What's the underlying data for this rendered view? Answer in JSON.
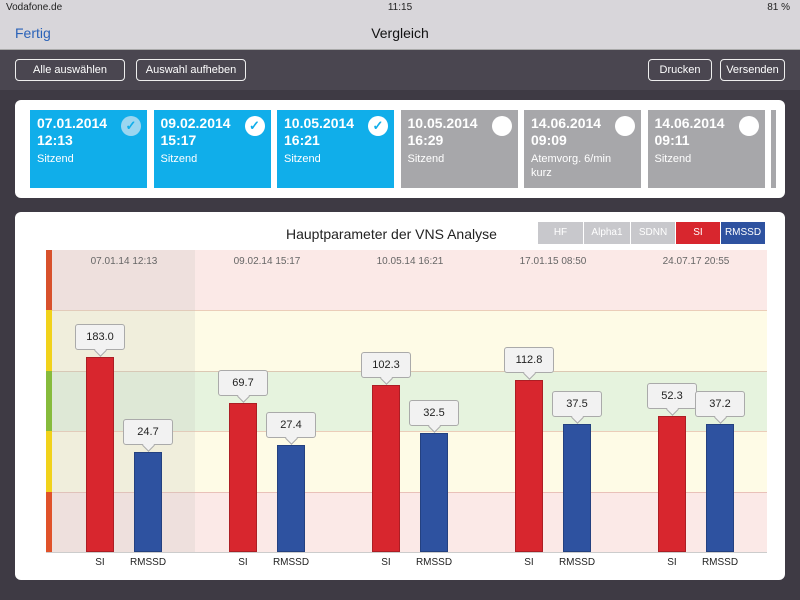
{
  "status": {
    "carrier": "Vodafone.de",
    "time": "11:15",
    "battery": "81 %"
  },
  "nav": {
    "back": "Fertig",
    "title": "Vergleich"
  },
  "toolbar": {
    "select_all": "Alle auswählen",
    "deselect": "Auswahl aufheben",
    "print": "Drucken",
    "send": "Versenden"
  },
  "cards": [
    {
      "date": "07.01.2014",
      "time": "12:13",
      "type": "Sitzend",
      "selected": true
    },
    {
      "date": "09.02.2014",
      "time": "15:17",
      "type": "Sitzend",
      "selected": true
    },
    {
      "date": "10.05.2014",
      "time": "16:21",
      "type": "Sitzend",
      "selected": true
    },
    {
      "date": "10.05.2014",
      "time": "16:29",
      "type": "Sitzend",
      "selected": false
    },
    {
      "date": "14.06.2014",
      "time": "09:09",
      "type": "Atemvorg. 6/min kurz",
      "selected": false
    },
    {
      "date": "14.06.2014",
      "time": "09:11",
      "type": "Sitzend",
      "selected": false
    }
  ],
  "colors": {
    "selected": "#10aeea",
    "unselected": "#a7a7aa",
    "si": "#d8262e",
    "rmssd": "#2e52a0"
  },
  "chart_data": {
    "type": "bar",
    "title": "Hauptparameter der VNS Analyse",
    "legend": [
      {
        "label": "HF",
        "active": false
      },
      {
        "label": "Alpha1",
        "active": false
      },
      {
        "label": "SDNN",
        "active": false
      },
      {
        "label": "SI",
        "active": true
      },
      {
        "label": "RMSSD",
        "active": true
      }
    ],
    "legend_placement": "top-right",
    "categories": [
      "07.01.14 12:13",
      "09.02.14 15:17",
      "10.05.14 16:21",
      "17.01.15 08:50",
      "24.07.17 20:55"
    ],
    "series": [
      {
        "name": "SI",
        "values": [
          "183.0",
          "69.7",
          "102.3",
          "112.8",
          "52.3"
        ]
      },
      {
        "name": "RMSSD",
        "values": [
          "24.7",
          "27.4",
          "32.5",
          "37.5",
          "37.2"
        ]
      }
    ],
    "bands": [
      "red",
      "yellow",
      "green",
      "yellow",
      "red"
    ]
  }
}
